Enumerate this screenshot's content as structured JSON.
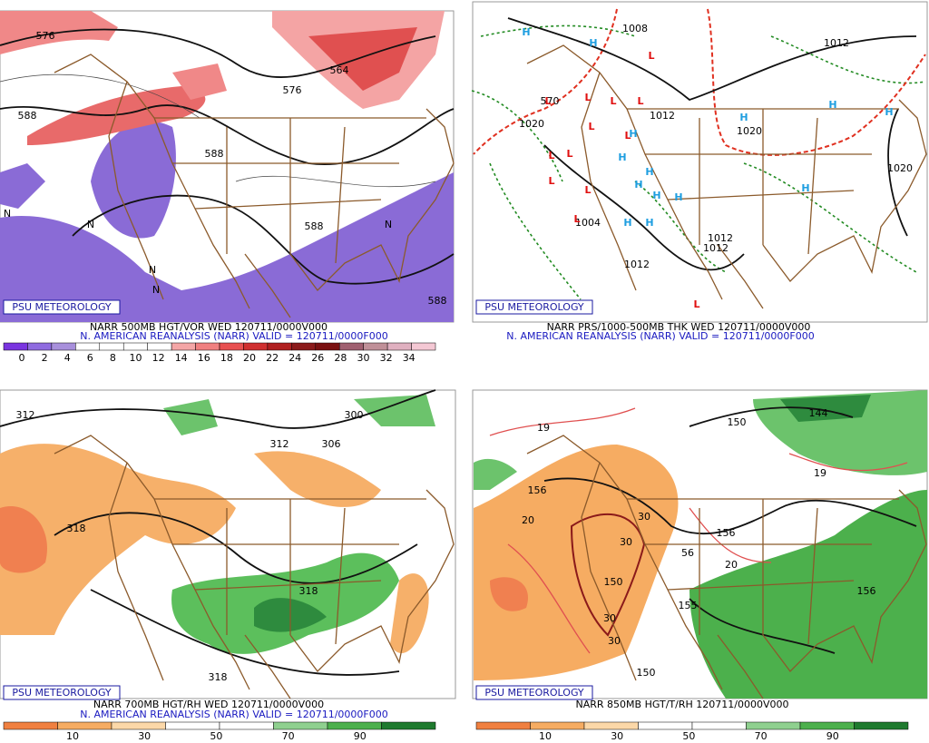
{
  "panels": [
    {
      "logo": "PSU METEOROLOGY",
      "title": "NARR 500MB HGT/VOR WED 120711/0000V000",
      "subtitle": "N. AMERICAN REANALYSIS (NARR) VALID = 120711/0000F000",
      "colorbar_ticks": [
        0,
        2,
        4,
        6,
        8,
        10,
        12,
        14,
        16,
        18,
        20,
        22,
        24,
        26,
        28,
        30,
        32,
        34
      ],
      "contour_labels": [
        "576",
        "588",
        "564",
        "576",
        "588",
        "588",
        "588",
        "N",
        "N",
        "N",
        "N",
        "N"
      ]
    },
    {
      "logo": "PSU METEOROLOGY",
      "title": "NARR PRS/1000-500MB THK WED 120711/0000V000",
      "subtitle": "N. AMERICAN REANALYSIS (NARR) VALID = 120711/0000F000",
      "contour_labels": [
        "1008",
        "1012",
        "570",
        "1020",
        "1012",
        "1020",
        "1012",
        "1012",
        "1020",
        "1004",
        "1012"
      ],
      "pressure_centers": [
        "H",
        "H",
        "H",
        "H",
        "H",
        "H",
        "H",
        "H",
        "H",
        "H",
        "H",
        "H",
        "H",
        "H",
        "L",
        "L",
        "L",
        "L",
        "L",
        "L",
        "L",
        "L",
        "L",
        "L",
        "L",
        "L",
        "L"
      ]
    },
    {
      "logo": "PSU METEOROLOGY",
      "title": "NARR 700MB HGT/RH WED 120711/0000V000",
      "subtitle": "N. AMERICAN REANALYSIS (NARR) VALID = 120711/0000F000",
      "colorbar_ticks": [
        10,
        30,
        50,
        70,
        90
      ],
      "contour_labels": [
        "312",
        "300",
        "312",
        "306",
        "318",
        "318",
        "318"
      ]
    },
    {
      "logo": "PSU METEOROLOGY",
      "title": "NARR 850MB HGT/T/RH 120711/0000V000",
      "colorbar_ticks": [
        10,
        30,
        50,
        70,
        90
      ],
      "contour_labels": [
        "144",
        "150",
        "19",
        "19",
        "156",
        "20",
        "30",
        "30",
        "156",
        "56",
        "20",
        "150",
        "155",
        "156",
        "30",
        "30",
        "150"
      ]
    }
  ]
}
